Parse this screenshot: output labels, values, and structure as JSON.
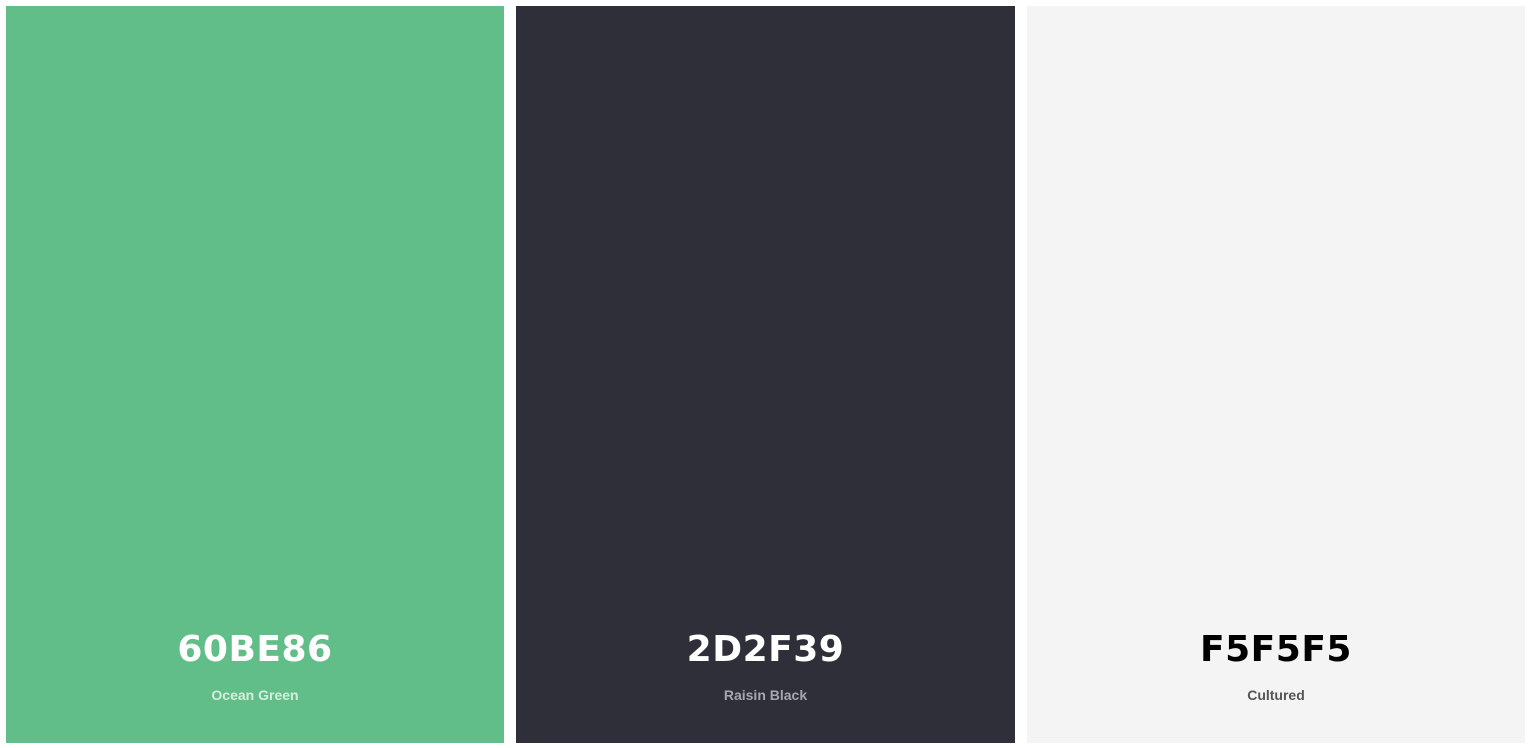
{
  "palette": {
    "colors": [
      {
        "hex": "60BE86",
        "name": "Ocean Green",
        "background": "#62BE88",
        "hex_text_color": "#FFFFFF",
        "name_text_color": "#D4EEDD"
      },
      {
        "hex": "2D2F39",
        "name": "Raisin Black",
        "background": "#2E2F39",
        "hex_text_color": "#FFFFFF",
        "name_text_color": "#A6A7AD"
      },
      {
        "hex": "F5F5F5",
        "name": "Cultured",
        "background": "#F4F4F4",
        "hex_text_color": "#000000",
        "name_text_color": "#555555"
      }
    ]
  }
}
